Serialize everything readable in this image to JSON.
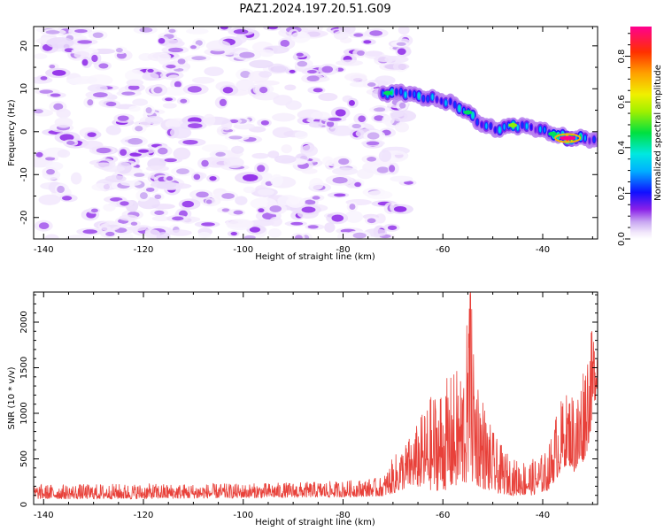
{
  "figure": {
    "title": "PAZ1.2024.197.20.51.G09"
  },
  "chart_data": [
    {
      "type": "heatmap",
      "xlabel": "Height of straight line (km)",
      "ylabel": "Frequency (Hz)",
      "xlim": [
        -142,
        -29
      ],
      "ylim": [
        -25,
        24.5
      ],
      "xticks": [
        -140,
        -120,
        -100,
        -80,
        -60,
        -40
      ],
      "yticks": [
        -20,
        -10,
        0,
        10,
        20
      ],
      "colorbar": {
        "label": "Normalized spectral amplitude",
        "range": [
          0,
          0.93
        ],
        "ticks": [
          0.0,
          0.2,
          0.4,
          0.6,
          0.8
        ],
        "colormap": "rainbow"
      },
      "noise_region": {
        "x": [
          -141,
          -71
        ],
        "amplitude_range": [
          0.02,
          0.08
        ]
      },
      "ridge": [
        {
          "x": -71,
          "y": 9.0,
          "amp": 0.45
        },
        {
          "x": -68,
          "y": 9.2,
          "amp": 0.35
        },
        {
          "x": -64,
          "y": 8.0,
          "amp": 0.4
        },
        {
          "x": -61,
          "y": 7.5,
          "amp": 0.3
        },
        {
          "x": -58,
          "y": 6.5,
          "amp": 0.35
        },
        {
          "x": -55,
          "y": 4.5,
          "amp": 0.45
        },
        {
          "x": -52,
          "y": 1.5,
          "amp": 0.3
        },
        {
          "x": -49,
          "y": 0.5,
          "amp": 0.35
        },
        {
          "x": -46,
          "y": 1.5,
          "amp": 0.55
        },
        {
          "x": -42,
          "y": 1.0,
          "amp": 0.25
        },
        {
          "x": -38,
          "y": -0.5,
          "amp": 0.45
        },
        {
          "x": -35,
          "y": -1.5,
          "amp": 0.93
        },
        {
          "x": -32,
          "y": -1.5,
          "amp": 0.4
        },
        {
          "x": -29,
          "y": -2.0,
          "amp": 0.2
        }
      ]
    },
    {
      "type": "line",
      "xlabel": "Height of straight line (km)",
      "ylabel": "SNR (10 * v/v)",
      "xlim": [
        -142,
        -29
      ],
      "ylim": [
        0,
        2330
      ],
      "xticks": [
        -140,
        -120,
        -100,
        -80,
        -60,
        -40
      ],
      "yticks": [
        0,
        500,
        1000,
        1500,
        2000
      ],
      "color": "#e8413a",
      "series": [
        {
          "envelope": [
            {
              "x": -142,
              "lo": 60,
              "hi": 220
            },
            {
              "x": -120,
              "lo": 60,
              "hi": 230
            },
            {
              "x": -100,
              "lo": 70,
              "hi": 230
            },
            {
              "x": -80,
              "lo": 80,
              "hi": 260
            },
            {
              "x": -72,
              "lo": 90,
              "hi": 300
            },
            {
              "x": -70,
              "lo": 120,
              "hi": 520
            },
            {
              "x": -66,
              "lo": 200,
              "hi": 800
            },
            {
              "x": -62,
              "lo": 150,
              "hi": 1250
            },
            {
              "x": -60,
              "lo": 150,
              "hi": 1350
            },
            {
              "x": -58,
              "lo": 180,
              "hi": 1450
            },
            {
              "x": -56,
              "lo": 200,
              "hi": 1600
            },
            {
              "x": -54.5,
              "lo": 250,
              "hi": 2330
            },
            {
              "x": -53,
              "lo": 200,
              "hi": 1500
            },
            {
              "x": -51,
              "lo": 150,
              "hi": 950
            },
            {
              "x": -49,
              "lo": 120,
              "hi": 700
            },
            {
              "x": -46,
              "lo": 100,
              "hi": 500
            },
            {
              "x": -42,
              "lo": 100,
              "hi": 500
            },
            {
              "x": -39,
              "lo": 150,
              "hi": 600
            },
            {
              "x": -37,
              "lo": 300,
              "hi": 1100
            },
            {
              "x": -35,
              "lo": 450,
              "hi": 1250
            },
            {
              "x": -33,
              "lo": 300,
              "hi": 1300
            },
            {
              "x": -31,
              "lo": 600,
              "hi": 1850
            },
            {
              "x": -29,
              "lo": 1300,
              "hi": 2000
            }
          ]
        }
      ]
    }
  ]
}
